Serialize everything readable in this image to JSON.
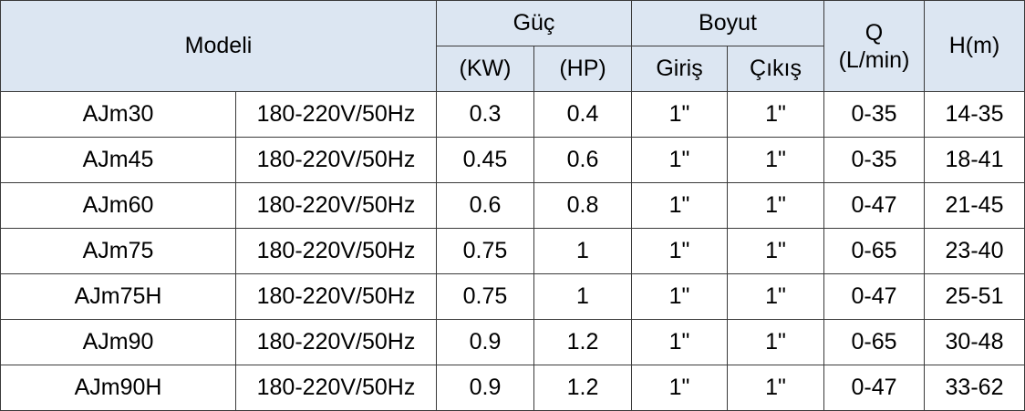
{
  "header": {
    "model": "Modeli",
    "power": "Güç",
    "size": "Boyut",
    "q": "Q",
    "q_unit": "(L/min)",
    "h": "H(m)",
    "kw": "(KW)",
    "hp": "(HP)",
    "inlet": "Giriş",
    "outlet": "Çıkış"
  },
  "table": {
    "rows": [
      [
        "AJm30",
        "180-220V/50Hz",
        "0.3",
        "0.4",
        "1\"",
        "1\"",
        "0-35",
        "14-35"
      ],
      [
        "AJm45",
        "180-220V/50Hz",
        "0.45",
        "0.6",
        "1\"",
        "1\"",
        "0-35",
        "18-41"
      ],
      [
        "AJm60",
        "180-220V/50Hz",
        "0.6",
        "0.8",
        "1\"",
        "1\"",
        "0-47",
        "21-45"
      ],
      [
        "AJm75",
        "180-220V/50Hz",
        "0.75",
        "1",
        "1\"",
        "1\"",
        "0-65",
        "23-40"
      ],
      [
        "AJm75H",
        "180-220V/50Hz",
        "0.75",
        "1",
        "1\"",
        "1\"",
        "0-47",
        "25-51"
      ],
      [
        "AJm90",
        "180-220V/50Hz",
        "0.9",
        "1.2",
        "1\"",
        "1\"",
        "0-65",
        "30-48"
      ],
      [
        "AJm90H",
        "180-220V/50Hz",
        "0.9",
        "1.2",
        "1\"",
        "1\"",
        "0-47",
        "33-62"
      ]
    ]
  }
}
